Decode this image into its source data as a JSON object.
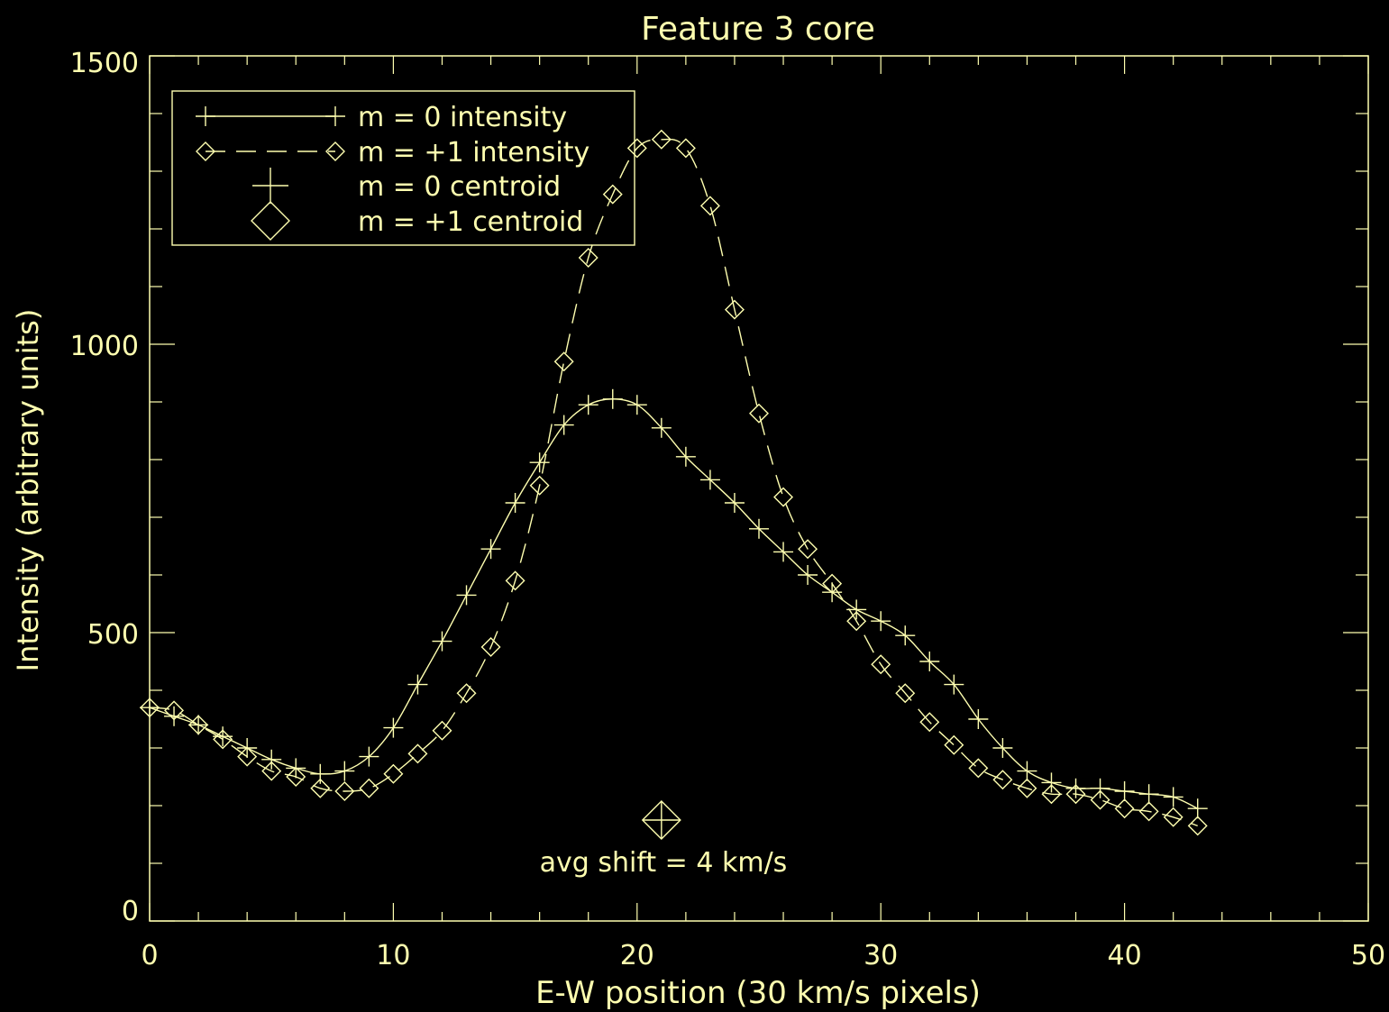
{
  "chart_data": {
    "type": "line",
    "title": "Feature 3 core",
    "xlabel": "E-W position (30 km/s pixels)",
    "ylabel": "Intensity (arbitrary units)",
    "xlim": [
      0,
      50
    ],
    "ylim": [
      0,
      1500
    ],
    "x_ticks": [
      "0",
      "10",
      "20",
      "30",
      "40",
      "50"
    ],
    "y_ticks": [
      "0",
      "500",
      "1000",
      "1500"
    ],
    "grid": false,
    "legend_position": "top-left",
    "color": "#ffffb0",
    "series": [
      {
        "name": "m = 0 intensity",
        "line": "solid",
        "marker": "plus",
        "x": [
          0,
          1,
          2,
          3,
          4,
          5,
          6,
          7,
          8,
          9,
          10,
          11,
          12,
          13,
          14,
          15,
          16,
          17,
          18,
          19,
          20,
          21,
          22,
          23,
          24,
          25,
          26,
          27,
          28,
          29,
          30,
          31,
          32,
          33,
          34,
          35,
          36,
          37,
          38,
          39,
          40,
          41,
          42,
          43
        ],
        "y": [
          370,
          355,
          340,
          320,
          300,
          280,
          265,
          255,
          260,
          285,
          335,
          410,
          485,
          565,
          645,
          725,
          795,
          860,
          895,
          905,
          895,
          855,
          805,
          765,
          725,
          680,
          640,
          600,
          570,
          540,
          520,
          495,
          450,
          410,
          350,
          300,
          260,
          240,
          230,
          230,
          225,
          220,
          215,
          195
        ]
      },
      {
        "name": "m = +1 intensity",
        "line": "dashed",
        "marker": "diamond",
        "x": [
          0,
          1,
          2,
          3,
          4,
          5,
          6,
          7,
          8,
          9,
          10,
          11,
          12,
          13,
          14,
          15,
          16,
          17,
          18,
          19,
          20,
          21,
          22,
          23,
          24,
          25,
          26,
          27,
          28,
          29,
          30,
          31,
          32,
          33,
          34,
          35,
          36,
          37,
          38,
          39,
          40,
          41,
          42,
          43
        ],
        "y": [
          370,
          365,
          340,
          315,
          285,
          260,
          250,
          230,
          225,
          230,
          255,
          290,
          330,
          395,
          475,
          590,
          755,
          970,
          1150,
          1260,
          1340,
          1355,
          1340,
          1240,
          1060,
          880,
          735,
          645,
          585,
          520,
          445,
          395,
          345,
          305,
          265,
          245,
          230,
          220,
          220,
          210,
          195,
          190,
          180,
          165
        ]
      }
    ],
    "centroids": [
      {
        "name": "m = 0 centroid",
        "marker": "plus",
        "x": 21.0,
        "y": 175
      },
      {
        "name": "m = +1 centroid",
        "marker": "diamond",
        "x": 21.0,
        "y": 175
      }
    ],
    "annotation": "avg shift = 4 km/s"
  }
}
